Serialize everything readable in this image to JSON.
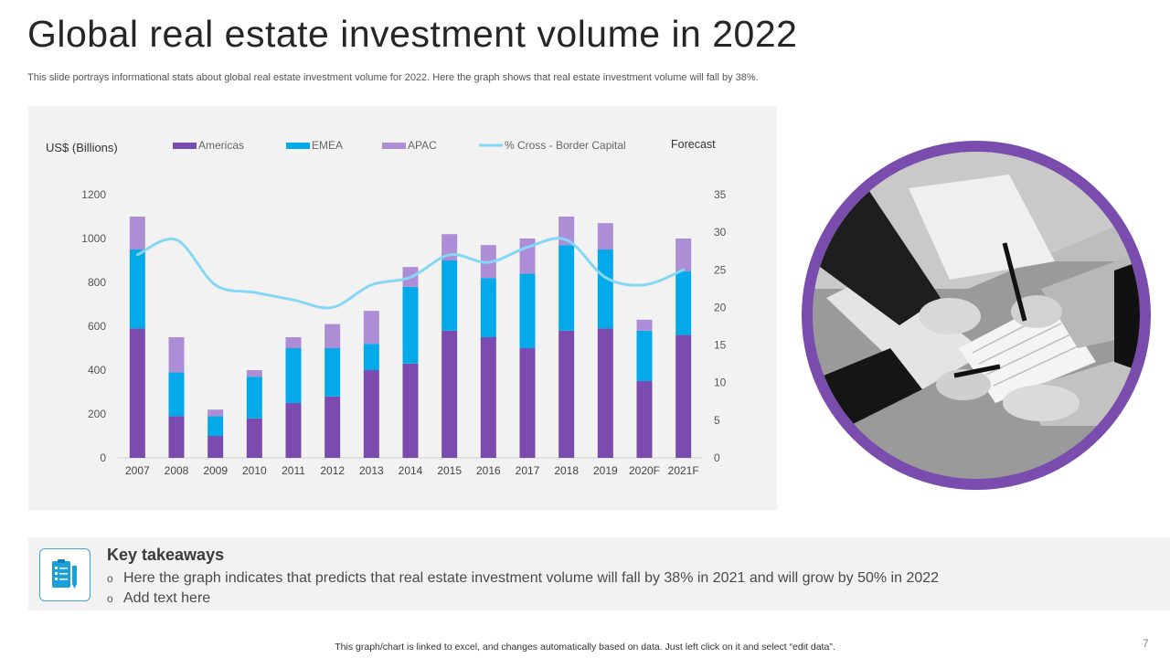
{
  "slide": {
    "title": "Global real estate investment volume in 2022",
    "subtitle": "This slide portrays informational stats about global real estate investment volume for 2022. Here the graph shows that real estate investment volume will fall by 38%.",
    "footnote": "This graph/chart is linked to excel,  and changes automatically based on data. Just left click on it and select “edit data”.",
    "page_number": "7"
  },
  "chart_data": {
    "type": "bar",
    "stacked": true,
    "categories": [
      "2007",
      "2008",
      "2009",
      "2010",
      "2011",
      "2012",
      "2013",
      "2014",
      "2015",
      "2016",
      "2017",
      "2018",
      "2019",
      "2020F",
      "2021F"
    ],
    "ylabel": "US$ (Billions)",
    "ylim": [
      0,
      1200
    ],
    "yticks": [
      0,
      200,
      400,
      600,
      800,
      1000,
      1200
    ],
    "y2lim": [
      0,
      35
    ],
    "y2ticks": [
      0,
      5,
      10,
      15,
      20,
      25,
      30,
      35
    ],
    "forecast_label": "Forecast",
    "series": [
      {
        "name": "Americas",
        "color": "#7b4bb0",
        "values": [
          590,
          190,
          100,
          180,
          250,
          280,
          400,
          430,
          580,
          550,
          500,
          580,
          590,
          350,
          560
        ]
      },
      {
        "name": "EMEA",
        "color": "#04a9e9",
        "values": [
          360,
          200,
          90,
          190,
          250,
          220,
          120,
          350,
          320,
          270,
          340,
          390,
          360,
          230,
          290
        ]
      },
      {
        "name": "APAC",
        "color": "#ac8dd6",
        "values": [
          150,
          160,
          30,
          30,
          50,
          110,
          150,
          90,
          120,
          150,
          160,
          130,
          120,
          50,
          150
        ]
      },
      {
        "name": "% Cross - Border Capital",
        "type": "line",
        "axis": "right",
        "color": "#86d7f6",
        "values": [
          27,
          29,
          23,
          22,
          21,
          20,
          23,
          24,
          27,
          26,
          28,
          29,
          24,
          23,
          25
        ]
      }
    ]
  },
  "takeaways": {
    "heading": "Key takeaways",
    "icon": "checklist-icon",
    "bullet_glyph": "o",
    "items": [
      "Here the graph indicates that predicts that real estate investment volume will fall by 38% in 2021 and will grow by 50% in 2022",
      "Add text here"
    ]
  },
  "colors": {
    "accent_purple": "#7a4cae",
    "accent_blue": "#04a9e9",
    "panel_bg": "#f2f2f2"
  }
}
